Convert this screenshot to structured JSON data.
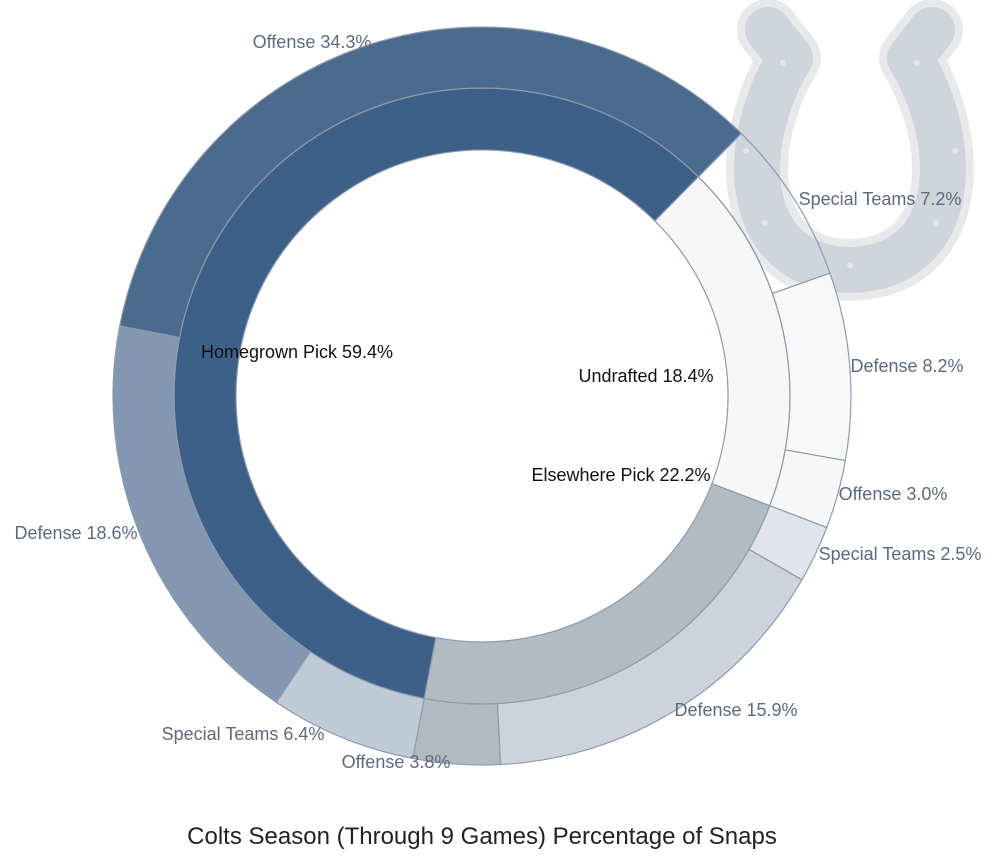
{
  "chart_data": {
    "type": "sunburst",
    "title": "Colts Season (Through 9 Games) Percentage of Snaps",
    "unit": "%",
    "logo": "horseshoe-logo",
    "groups": [
      {
        "name": "Homegrown Pick",
        "value": 59.4,
        "label": "Homegrown Pick 59.4%",
        "color": "#3e5f87",
        "children": [
          {
            "name": "Special Teams",
            "value": 6.4,
            "label": "Special Teams 6.4%",
            "color": "#bfcad7"
          },
          {
            "name": "Defense",
            "value": 18.6,
            "label": "Defense 18.6%",
            "color": "#8497b0"
          },
          {
            "name": "Offense",
            "value": 34.3,
            "label": "Offense 34.3%",
            "color": "#4a6a8e"
          }
        ]
      },
      {
        "name": "Undrafted",
        "value": 18.4,
        "label": "Undrafted 18.4%",
        "color": "#f7f7f7",
        "children": [
          {
            "name": "Special Teams",
            "value": 7.2,
            "label": "Special Teams 7.2%",
            "color": "none"
          },
          {
            "name": "Defense",
            "value": 8.2,
            "label": "Defense 8.2%",
            "color": "#f8f8f8"
          },
          {
            "name": "Offense",
            "value": 3.0,
            "label": "Offense 3.0%",
            "color": "#f7f7f7"
          }
        ]
      },
      {
        "name": "Elsewhere Pick",
        "value": 22.2,
        "label": "Elsewhere Pick 22.2%",
        "color": "#b2bac2",
        "children": [
          {
            "name": "Special Teams",
            "value": 2.5,
            "label": "Special Teams 2.5%",
            "color": "#e1e5e9"
          },
          {
            "name": "Defense",
            "value": 15.9,
            "label": "Defense 15.9%",
            "color": "#cdd3da"
          },
          {
            "name": "Offense",
            "value": 3.8,
            "label": "Offense 3.8%",
            "color": "#b3b9c0"
          }
        ]
      }
    ]
  }
}
